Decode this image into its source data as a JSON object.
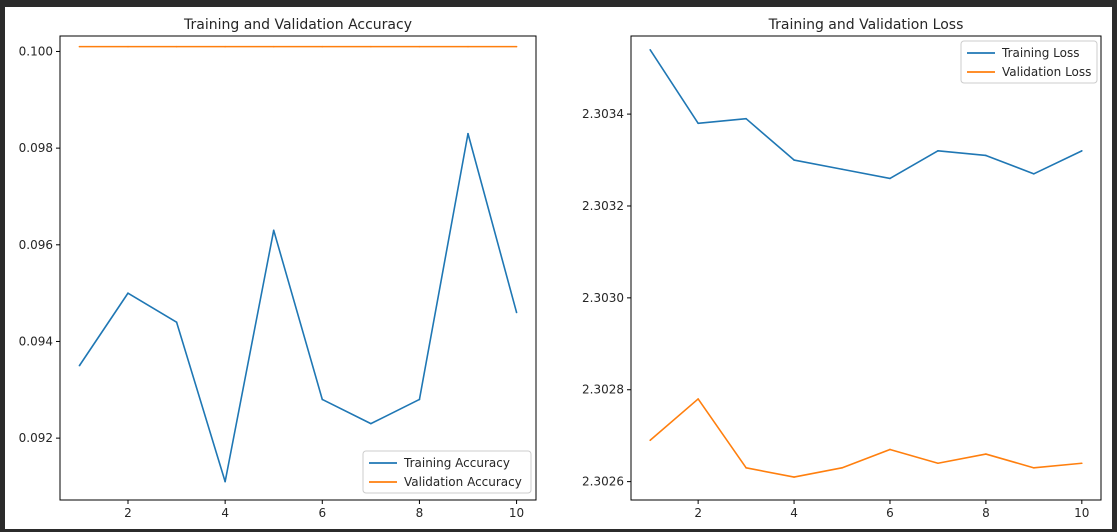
{
  "chart_data": [
    {
      "type": "line",
      "title": "Training and Validation Accuracy",
      "xlabel": "",
      "ylabel": "",
      "x": [
        1,
        2,
        3,
        4,
        5,
        6,
        7,
        8,
        9,
        10
      ],
      "xlim": [
        0.6,
        10.4
      ],
      "ylim": [
        0.09072,
        0.10032
      ],
      "xticks": [
        2,
        4,
        6,
        8,
        10
      ],
      "yticks": [
        0.092,
        0.094,
        0.096,
        0.098,
        0.1
      ],
      "ytick_labels": [
        "0.092",
        "0.094",
        "0.096",
        "0.098",
        "0.100"
      ],
      "legend_position": "lower-right",
      "grid": false,
      "series": [
        {
          "name": "Training Accuracy",
          "color": "#1f77b4",
          "values": [
            0.0935,
            0.095,
            0.0944,
            0.0911,
            0.0963,
            0.0928,
            0.0923,
            0.0928,
            0.0983,
            0.0946
          ]
        },
        {
          "name": "Validation Accuracy",
          "color": "#ff7f0e",
          "values": [
            0.1001,
            0.1001,
            0.1001,
            0.1001,
            0.1001,
            0.1001,
            0.1001,
            0.1001,
            0.1001,
            0.1001
          ]
        }
      ]
    },
    {
      "type": "line",
      "title": "Training and Validation Loss",
      "xlabel": "",
      "ylabel": "",
      "x": [
        1,
        2,
        3,
        4,
        5,
        6,
        7,
        8,
        9,
        10
      ],
      "xlim": [
        0.6,
        10.4
      ],
      "ylim": [
        2.30256,
        2.30357
      ],
      "xticks": [
        2,
        4,
        6,
        8,
        10
      ],
      "yticks": [
        2.3026,
        2.3028,
        2.303,
        2.3032,
        2.3034
      ],
      "ytick_labels": [
        "2.3026",
        "2.3028",
        "2.3030",
        "2.3032",
        "2.3034"
      ],
      "legend_position": "upper-right",
      "grid": false,
      "series": [
        {
          "name": "Training Loss",
          "color": "#1f77b4",
          "values": [
            2.30354,
            2.30338,
            2.30339,
            2.3033,
            2.30328,
            2.30326,
            2.30332,
            2.30331,
            2.30327,
            2.30332
          ]
        },
        {
          "name": "Validation Loss",
          "color": "#ff7f0e",
          "values": [
            2.30269,
            2.30278,
            2.30263,
            2.30261,
            2.30263,
            2.30267,
            2.30264,
            2.30266,
            2.30263,
            2.30264
          ]
        }
      ]
    }
  ]
}
